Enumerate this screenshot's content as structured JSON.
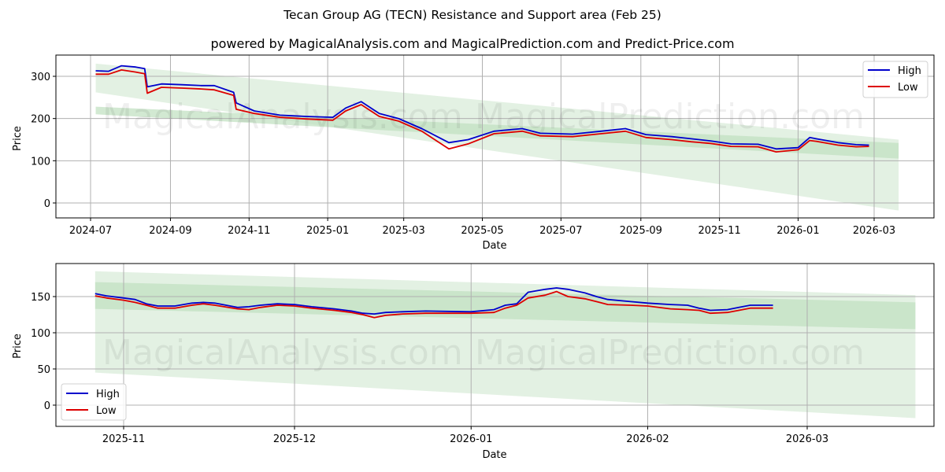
{
  "header": {
    "title": "Tecan Group AG (TECN) Resistance and Support area (Feb 25)",
    "subtitle": "powered by MagicalAnalysis.com and MagicalPrediction.com and Predict-Price.com"
  },
  "watermarks": [
    "MagicalAnalysis.com",
    "MagicalPrediction.com"
  ],
  "colors": {
    "high": "#0000cc",
    "low": "#dd0000",
    "band_light": "#d9ecd9",
    "band_dark": "#bfe0bf",
    "grid": "#b0b0b0"
  },
  "chart_data": [
    {
      "type": "line",
      "title": "Full history",
      "xlabel": "Date",
      "ylabel": "Price",
      "ylim": [
        -37,
        350
      ],
      "grid": true,
      "legend_position": "upper right",
      "legend": [
        "High",
        "Low"
      ],
      "x_ticks": [
        "2024-07",
        "2024-09",
        "2024-11",
        "2025-01",
        "2025-03",
        "2025-05",
        "2025-07",
        "2025-09",
        "2025-11",
        "2026-01",
        "2026-03"
      ],
      "y_ticks": [
        0,
        100,
        200,
        300
      ],
      "x": [
        "2024-07-05",
        "2024-07-15",
        "2024-07-25",
        "2024-08-05",
        "2024-08-12",
        "2024-08-14",
        "2024-08-25",
        "2024-09-10",
        "2024-09-25",
        "2024-10-05",
        "2024-10-20",
        "2024-10-22",
        "2024-11-05",
        "2024-11-25",
        "2024-12-15",
        "2025-01-05",
        "2025-01-15",
        "2025-01-27",
        "2025-02-10",
        "2025-02-25",
        "2025-03-15",
        "2025-04-05",
        "2025-04-20",
        "2025-05-10",
        "2025-06-01",
        "2025-06-15",
        "2025-07-10",
        "2025-08-01",
        "2025-08-20",
        "2025-09-05",
        "2025-09-25",
        "2025-10-10",
        "2025-10-25",
        "2025-11-10",
        "2025-12-01",
        "2025-12-15",
        "2026-01-01",
        "2026-01-10",
        "2026-01-15",
        "2026-02-01",
        "2026-02-15",
        "2026-02-25"
      ],
      "series": [
        {
          "name": "High",
          "values": [
            313,
            312,
            325,
            322,
            318,
            275,
            282,
            280,
            278,
            278,
            262,
            237,
            218,
            208,
            205,
            203,
            225,
            240,
            212,
            200,
            176,
            143,
            150,
            170,
            176,
            165,
            163,
            170,
            176,
            162,
            157,
            152,
            147,
            140,
            139,
            128,
            131,
            155,
            152,
            143,
            138,
            137
          ]
        },
        {
          "name": "Low",
          "values": [
            305,
            305,
            315,
            310,
            306,
            260,
            274,
            272,
            270,
            268,
            255,
            222,
            212,
            203,
            199,
            196,
            218,
            233,
            205,
            194,
            170,
            128,
            140,
            164,
            170,
            159,
            157,
            164,
            170,
            155,
            150,
            145,
            141,
            134,
            133,
            121,
            126,
            148,
            146,
            137,
            133,
            134
          ]
        }
      ],
      "bands": [
        {
          "name": "resistance_support_outer",
          "x": [
            "2024-07-05",
            "2026-03-20"
          ],
          "upper": [
            330,
            150
          ],
          "lower": [
            262,
            -18
          ]
        },
        {
          "name": "resistance_support_inner",
          "x": [
            "2024-07-05",
            "2026-03-20"
          ],
          "upper": [
            228,
            142
          ],
          "lower": [
            210,
            105
          ]
        }
      ]
    },
    {
      "type": "line",
      "title": "Recent zoom",
      "xlabel": "Date",
      "ylabel": "Price",
      "ylim": [
        -30,
        193
      ],
      "grid": true,
      "legend_position": "lower left",
      "legend": [
        "High",
        "Low"
      ],
      "x_ticks": [
        "2025-11",
        "2025-12",
        "2026-01",
        "2026-02",
        "2026-03"
      ],
      "y_ticks": [
        0,
        50,
        100,
        150
      ],
      "x": [
        "2025-10-27",
        "2025-10-29",
        "2025-11-01",
        "2025-11-03",
        "2025-11-05",
        "2025-11-07",
        "2025-11-10",
        "2025-11-13",
        "2025-11-15",
        "2025-11-17",
        "2025-11-21",
        "2025-11-23",
        "2025-11-25",
        "2025-11-28",
        "2025-12-01",
        "2025-12-04",
        "2025-12-08",
        "2025-12-11",
        "2025-12-13",
        "2025-12-15",
        "2025-12-17",
        "2025-12-20",
        "2025-12-24",
        "2026-01-01",
        "2026-01-05",
        "2026-01-07",
        "2026-01-09",
        "2026-01-11",
        "2026-01-14",
        "2026-01-16",
        "2026-01-18",
        "2026-01-21",
        "2026-01-23",
        "2026-01-25",
        "2026-01-29",
        "2026-02-01",
        "2026-02-05",
        "2026-02-08",
        "2026-02-10",
        "2026-02-12",
        "2026-02-15",
        "2026-02-17",
        "2026-02-19",
        "2026-02-23"
      ],
      "series": [
        {
          "name": "High",
          "values": [
            154,
            151,
            148,
            146,
            140,
            137,
            137,
            141,
            142,
            141,
            135,
            136,
            138,
            140,
            139,
            136,
            133,
            130,
            127,
            126,
            128,
            129,
            130,
            129,
            132,
            138,
            140,
            156,
            160,
            162,
            160,
            155,
            150,
            146,
            143,
            141,
            139,
            138,
            134,
            131,
            132,
            135,
            138,
            138
          ]
        },
        {
          "name": "Low",
          "values": [
            151,
            148,
            145,
            142,
            138,
            134,
            134,
            138,
            140,
            138,
            133,
            132,
            135,
            138,
            137,
            134,
            131,
            128,
            125,
            121,
            124,
            126,
            127,
            127,
            128,
            134,
            138,
            148,
            152,
            157,
            150,
            147,
            143,
            139,
            138,
            137,
            133,
            132,
            131,
            127,
            128,
            131,
            134,
            134
          ]
        }
      ],
      "bands": [
        {
          "name": "resistance_support_outer",
          "x": [
            "2025-10-27",
            "2026-03-20"
          ],
          "upper": [
            185,
            152
          ],
          "lower": [
            45,
            -18
          ]
        },
        {
          "name": "resistance_support_inner",
          "x": [
            "2025-10-27",
            "2026-03-20"
          ],
          "upper": [
            170,
            142
          ],
          "lower": [
            133,
            105
          ]
        }
      ]
    }
  ]
}
